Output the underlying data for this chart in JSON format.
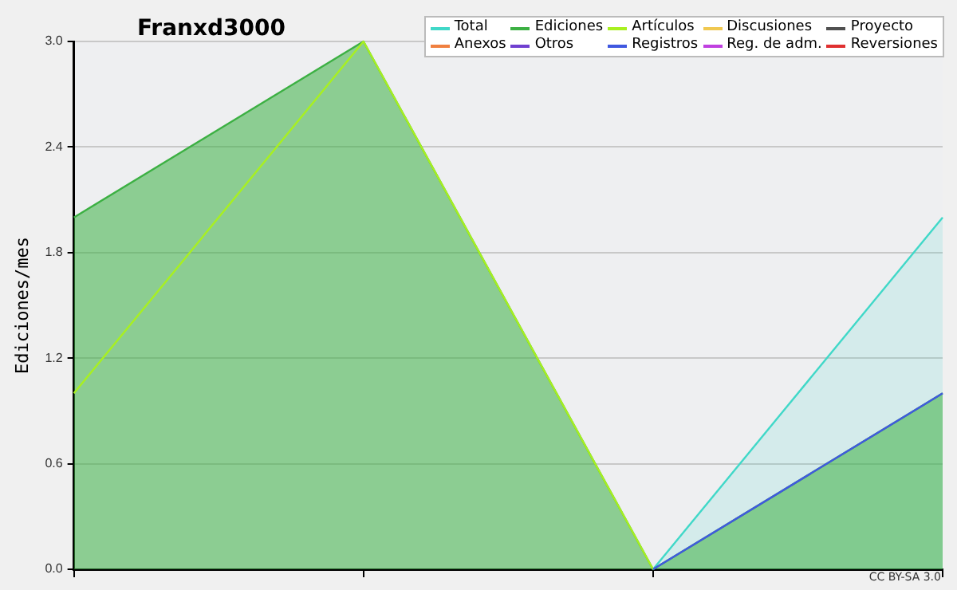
{
  "chart_data": {
    "type": "area",
    "title": "Franxd3000",
    "ylabel": "Ediciones/mes",
    "categories": [
      null,
      null,
      null,
      null
    ],
    "series": [
      {
        "name": "Total",
        "color": "#40d8c8",
        "values": [
          null,
          null,
          0,
          2
        ]
      },
      {
        "name": "Ediciones",
        "color": "#3cb043",
        "values": [
          2,
          3,
          0,
          1
        ]
      },
      {
        "name": "Artículos",
        "color": "#a8f020",
        "type": "line",
        "values": [
          1,
          3,
          0,
          null
        ]
      },
      {
        "name": "Discusiones",
        "color": "#f0c850",
        "type": "line",
        "values": [
          null,
          null,
          null,
          null
        ]
      },
      {
        "name": "Proyecto",
        "color": "#505050",
        "type": "line",
        "values": [
          null,
          null,
          null,
          null
        ]
      },
      {
        "name": "Anexos",
        "color": "#f08040",
        "type": "line",
        "values": [
          null,
          null,
          null,
          null
        ]
      },
      {
        "name": "Otros",
        "color": "#7040d0",
        "type": "line",
        "values": [
          null,
          null,
          null,
          null
        ]
      },
      {
        "name": "Registros",
        "color": "#4058e0",
        "type": "line",
        "values": [
          null,
          null,
          0,
          1
        ]
      },
      {
        "name": "Reg. de adm.",
        "color": "#c040e0",
        "type": "line",
        "values": [
          null,
          null,
          null,
          null
        ]
      },
      {
        "name": "Reversiones",
        "color": "#e03030",
        "type": "line",
        "values": [
          null,
          null,
          null,
          null
        ]
      }
    ],
    "ylim": [
      0,
      3
    ],
    "yticks": [
      {
        "value": 0,
        "label": "0.0"
      },
      {
        "value": 0.6,
        "label": "0.6"
      },
      {
        "value": 1.2,
        "label": "1.2"
      },
      {
        "value": 1.8,
        "label": "1.8"
      },
      {
        "value": 2.4,
        "label": "2.4"
      },
      {
        "value": 3,
        "label": "3.0"
      }
    ],
    "grid": "y",
    "legend": "top right",
    "tick_labels": "y",
    "marker": "none",
    "line_style": "solid",
    "annotations": [
      "CC BY-SA 3.0"
    ]
  }
}
